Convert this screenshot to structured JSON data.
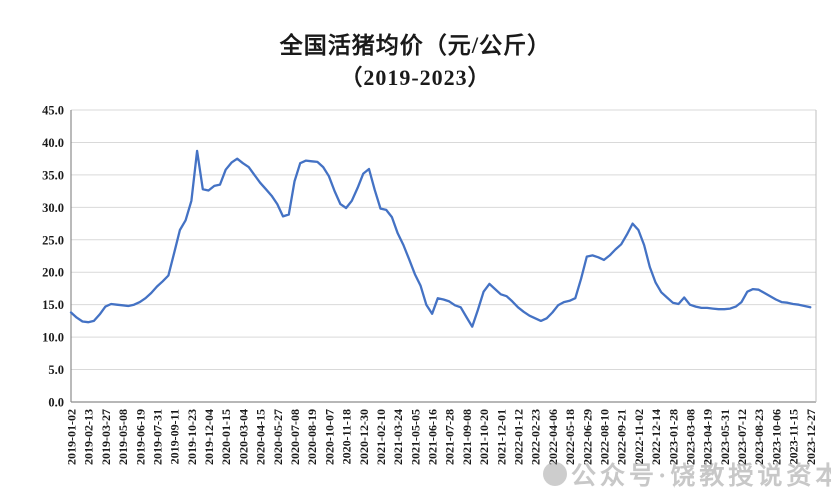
{
  "title": {
    "line1": "全国活猪均价（元/公斤）",
    "line2": "（2019-2023）"
  },
  "watermark": {
    "logo_icon": "gray-circle-logo",
    "text": "公众号·饶教授说资本"
  },
  "chart_data": {
    "type": "line",
    "title": "全国活猪均价（元/公斤）",
    "subtitle": "（2019-2023）",
    "xlabel": "",
    "ylabel": "",
    "unit": "元/公斤",
    "ylim": [
      0,
      45
    ],
    "ytick_step": 5,
    "ytick_labels": [
      "0.0",
      "5.0",
      "10.0",
      "15.0",
      "20.0",
      "25.0",
      "30.0",
      "35.0",
      "40.0",
      "45.0"
    ],
    "grid": true,
    "legend": "none",
    "x_label_rotation": -90,
    "categories": [
      "2019-01-02",
      "2019-02-13",
      "2019-03-27",
      "2019-05-08",
      "2019-06-19",
      "2019-07-31",
      "2019-09-11",
      "2019-10-23",
      "2019-12-04",
      "2020-01-15",
      "2020-03-04",
      "2020-04-15",
      "2020-05-27",
      "2020-07-08",
      "2020-08-19",
      "2020-10-07",
      "2020-11-18",
      "2020-12-30",
      "2021-02-10",
      "2021-03-24",
      "2021-05-05",
      "2021-06-16",
      "2021-07-28",
      "2021-09-08",
      "2021-10-20",
      "2021-12-01",
      "2022-01-12",
      "2022-02-23",
      "2022-04-06",
      "2022-05-18",
      "2022-06-29",
      "2022-08-10",
      "2022-09-21",
      "2022-11-02",
      "2022-12-14",
      "2023-01-28",
      "2023-03-08",
      "2023-04-19",
      "2023-05-31",
      "2023-07-12",
      "2023-08-23",
      "2023-10-06",
      "2023-11-15",
      "2023-12-27"
    ],
    "samples_per_label_interval": 3,
    "values": [
      13.8,
      13.0,
      12.4,
      12.3,
      12.5,
      13.5,
      14.7,
      15.1,
      15.0,
      14.9,
      14.8,
      15.0,
      15.4,
      16.0,
      16.8,
      17.8,
      18.6,
      19.5,
      23.0,
      26.5,
      28.0,
      31.0,
      38.7,
      32.8,
      32.6,
      33.3,
      33.5,
      35.8,
      36.9,
      37.5,
      36.8,
      36.2,
      35.0,
      33.8,
      32.8,
      31.8,
      30.5,
      28.6,
      28.9,
      34.0,
      36.8,
      37.2,
      37.1,
      37.0,
      36.2,
      34.8,
      32.5,
      30.5,
      29.9,
      31.0,
      33.0,
      35.2,
      35.9,
      32.7,
      29.8,
      29.6,
      28.5,
      26.0,
      24.2,
      22.0,
      19.7,
      17.9,
      15.0,
      13.6,
      16.0,
      15.8,
      15.5,
      14.9,
      14.6,
      13.1,
      11.6,
      14.2,
      17.0,
      18.2,
      17.4,
      16.6,
      16.3,
      15.5,
      14.6,
      13.9,
      13.3,
      12.9,
      12.5,
      12.9,
      13.8,
      14.9,
      15.4,
      15.6,
      16.0,
      19.0,
      22.4,
      22.6,
      22.3,
      21.9,
      22.6,
      23.5,
      24.3,
      25.8,
      27.5,
      26.5,
      24.2,
      20.8,
      18.4,
      16.9,
      16.1,
      15.3,
      15.1,
      16.1,
      15.0,
      14.7,
      14.5,
      14.5,
      14.4,
      14.3,
      14.3,
      14.4,
      14.7,
      15.4,
      17.0,
      17.4,
      17.3,
      16.8,
      16.3,
      15.8,
      15.4,
      15.3,
      15.1,
      15.0,
      14.8,
      14.6
    ],
    "line_color": "#4472C4",
    "grid_color": "#D9D9D9",
    "axis_color": "#8C8C8C",
    "text_color": "#1A1A1A",
    "background_color": "#FFFFFF"
  }
}
